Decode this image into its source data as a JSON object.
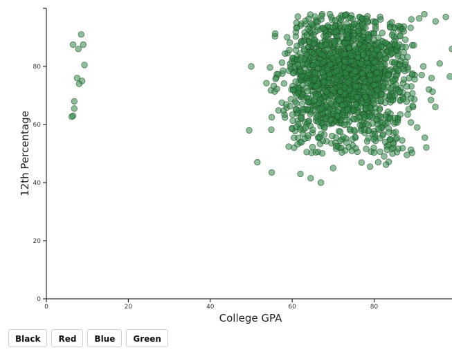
{
  "chart_data": {
    "type": "scatter",
    "xlabel": "College GPA",
    "ylabel": "12th Percentage",
    "xlim": [
      0,
      99
    ],
    "ylim": [
      0,
      100
    ],
    "x_ticks": [
      0,
      20,
      40,
      60,
      80
    ],
    "y_ticks": [
      0,
      20,
      40,
      60,
      80
    ],
    "grid": false,
    "point_color": "#2e8b46",
    "point_stroke": "#1f4a2a",
    "point_opacity": 0.55,
    "outlier_points": [
      {
        "x": 6.5,
        "y": 87.5
      },
      {
        "x": 8.5,
        "y": 91
      },
      {
        "x": 7.8,
        "y": 86
      },
      {
        "x": 9,
        "y": 87.5
      },
      {
        "x": 9.3,
        "y": 80.5
      },
      {
        "x": 7.5,
        "y": 76
      },
      {
        "x": 8.7,
        "y": 75
      },
      {
        "x": 8,
        "y": 74
      },
      {
        "x": 6.8,
        "y": 68
      },
      {
        "x": 6.8,
        "y": 65.5
      },
      {
        "x": 6.5,
        "y": 63
      },
      {
        "x": 6.2,
        "y": 62.7
      },
      {
        "x": 50,
        "y": 80
      },
      {
        "x": 49.5,
        "y": 58
      },
      {
        "x": 51.5,
        "y": 47
      },
      {
        "x": 55,
        "y": 43.5
      },
      {
        "x": 62,
        "y": 43
      },
      {
        "x": 64.5,
        "y": 41.5
      },
      {
        "x": 67,
        "y": 40
      },
      {
        "x": 70,
        "y": 45
      },
      {
        "x": 79,
        "y": 45.5
      },
      {
        "x": 81,
        "y": 47
      },
      {
        "x": 88,
        "y": 49.5
      },
      {
        "x": 90.5,
        "y": 59
      },
      {
        "x": 92,
        "y": 80
      },
      {
        "x": 94,
        "y": 76
      },
      {
        "x": 96,
        "y": 81
      },
      {
        "x": 98.5,
        "y": 76.5
      },
      {
        "x": 95,
        "y": 95.5
      },
      {
        "x": 97.5,
        "y": 97
      },
      {
        "x": 91,
        "y": 96.5
      },
      {
        "x": 99,
        "y": 86
      }
    ],
    "cluster": {
      "n_points": 1700,
      "x_range": [
        50,
        99
      ],
      "y_range": [
        40,
        98
      ],
      "x_center": 73,
      "y_center": 76
    }
  },
  "buttons": {
    "black": "Black",
    "red": "Red",
    "blue": "Blue",
    "green": "Green"
  }
}
